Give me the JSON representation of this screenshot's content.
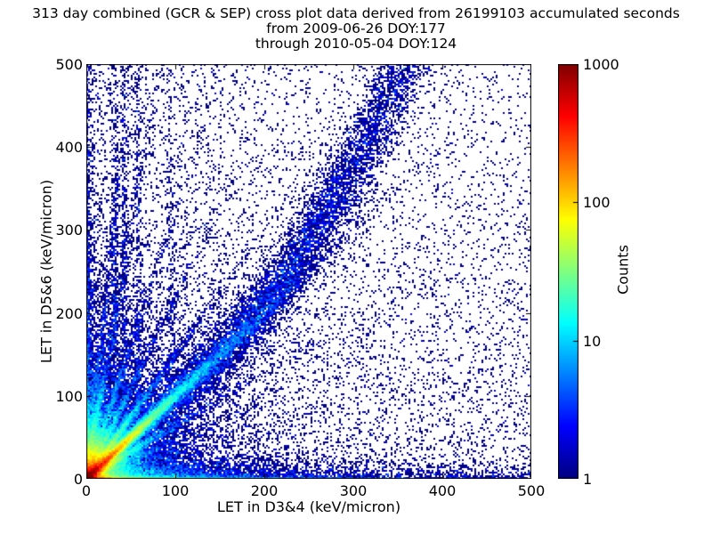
{
  "figure": {
    "title_lines": [
      "313 day combined (GCR & SEP) cross plot data derived from 26199103 accumulated seconds",
      "from 2009-06-26 DOY:177",
      "through 2010-05-04 DOY:124"
    ],
    "xlabel": "LET in D3&4 (keV/micron)",
    "ylabel": "LET in D5&6 (keV/micron)",
    "colorbar_label": "Counts",
    "background_color": "#ffffff",
    "frame_color": "#000000",
    "point_base_color": "#000080"
  },
  "chart_data": {
    "type": "heatmap",
    "title": "313 day combined (GCR & SEP) cross plot data derived from 26199103 accumulated seconds from 2009-06-26 DOY:177 through 2010-05-04 DOY:124",
    "xlabel": "LET in D3&4 (keV/micron)",
    "ylabel": "LET in D5&6 (keV/micron)",
    "xlim": [
      0,
      500
    ],
    "ylim": [
      0,
      500
    ],
    "xticks": [
      {
        "value": 0,
        "label": "0"
      },
      {
        "value": 100,
        "label": "100"
      },
      {
        "value": 200,
        "label": "200"
      },
      {
        "value": 300,
        "label": "300"
      },
      {
        "value": 400,
        "label": "400"
      },
      {
        "value": 500,
        "label": "500"
      }
    ],
    "yticks": [
      {
        "value": 0,
        "label": "0"
      },
      {
        "value": 100,
        "label": "100"
      },
      {
        "value": 200,
        "label": "200"
      },
      {
        "value": 300,
        "label": "300"
      },
      {
        "value": 400,
        "label": "400"
      },
      {
        "value": 500,
        "label": "500"
      }
    ],
    "colorbar": {
      "label": "Counts",
      "scale": "log",
      "min": 1,
      "max": 1000,
      "colormap": "jet",
      "ticks": [
        {
          "value": 1000,
          "label": "1000"
        },
        {
          "value": 100,
          "label": "100"
        },
        {
          "value": 10,
          "label": "10"
        },
        {
          "value": 1,
          "label": "1"
        }
      ]
    },
    "render": {
      "seed": 12345,
      "bins_x": 250,
      "bins_y": 233,
      "fields": [
        {
          "type": "blob",
          "x": 0,
          "y": 0,
          "amp": 1500,
          "scale": 4
        },
        {
          "type": "blob",
          "x": 0,
          "y": 0,
          "amp": 25,
          "scale": 22
        },
        {
          "type": "blob",
          "x": 0,
          "y": 0,
          "amp": 5,
          "scale": 60
        },
        {
          "type": "vcolumn",
          "pairs": [
            [
              400,
              15
            ],
            [
              30,
              80
            ],
            [
              4,
              400
            ]
          ],
          "xscale": 1.3
        },
        {
          "type": "hrow",
          "pairs": [
            [
              400,
              18
            ],
            [
              60,
              70
            ],
            [
              6,
              300
            ]
          ],
          "yscale": 1.5
        },
        {
          "type": "hband",
          "pairs": [
            [
              12,
              120
            ],
            [
              2,
              400
            ]
          ],
          "yscale": 9
        },
        {
          "type": "vband",
          "pairs": [
            [
              8,
              100
            ],
            [
              1.5,
              350
            ]
          ],
          "xscale": 7
        },
        {
          "type": "ray",
          "slope": 1.0,
          "amp": 800,
          "len": 25,
          "sigma": 2.5
        },
        {
          "type": "ray",
          "slope": 1.0,
          "amp": 60,
          "len": 80,
          "sigma": 4
        },
        {
          "type": "ray",
          "slope": 1.5,
          "amp": 150,
          "len": 30,
          "sigma": 2.5
        },
        {
          "type": "ray",
          "slope": 1.5,
          "amp": 8,
          "len": 90,
          "sigma": 3
        },
        {
          "type": "ray",
          "slope": 2.2,
          "amp": 100,
          "len": 28,
          "sigma": 2.5
        },
        {
          "type": "ray",
          "slope": 2.2,
          "amp": 6,
          "len": 90,
          "sigma": 3
        },
        {
          "type": "ray",
          "slope": 3.2,
          "amp": 80,
          "len": 30,
          "sigma": 2.5
        },
        {
          "type": "ray",
          "slope": 3.2,
          "amp": 5,
          "len": 110,
          "sigma": 3
        },
        {
          "type": "ray",
          "slope": 6.0,
          "amp": 60,
          "len": 35,
          "sigma": 3
        },
        {
          "type": "ray",
          "slope": 6.0,
          "amp": 4,
          "len": 140,
          "sigma": 3
        },
        {
          "type": "ray",
          "slope": 10.0,
          "amp": 30,
          "len": 40,
          "sigma": 3
        },
        {
          "type": "ray",
          "slope": 10.0,
          "amp": 3,
          "len": 160,
          "sigma": 3
        },
        {
          "type": "ray",
          "slope": 0.65,
          "amp": 90,
          "len": 28,
          "sigma": 2.5
        },
        {
          "type": "ray",
          "slope": 0.65,
          "amp": 5,
          "len": 80,
          "sigma": 3
        },
        {
          "type": "ray",
          "slope": 0.45,
          "amp": 50,
          "len": 25,
          "sigma": 2.5
        },
        {
          "type": "ray",
          "slope": 0.3,
          "amp": 30,
          "len": 25,
          "sigma": 2.5
        },
        {
          "type": "ray",
          "slope": 0.15,
          "amp": 20,
          "len": 30,
          "sigma": 3
        },
        {
          "type": "diagband",
          "curve": 0.003,
          "curve_start": 140,
          "sigma0": 5,
          "sigma_grow": 0.09,
          "amp": 5.5,
          "amp_scale": 220
        },
        {
          "type": "vline",
          "x": 32,
          "amp": 2.2,
          "sigma": 2,
          "yscale": 260
        },
        {
          "type": "vline",
          "x": 43,
          "amp": 2.0,
          "sigma": 2,
          "yscale": 260
        },
        {
          "type": "vline",
          "x": 58,
          "amp": 1.5,
          "sigma": 2.5,
          "yscale": 280
        },
        {
          "type": "vline",
          "x": 95,
          "amp": 0.9,
          "sigma": 3,
          "yscale": 300
        },
        {
          "type": "background",
          "base": 0.03,
          "ax": 0.1,
          "xscale": 300,
          "ay": 0.1,
          "yscale": 300
        }
      ]
    }
  }
}
